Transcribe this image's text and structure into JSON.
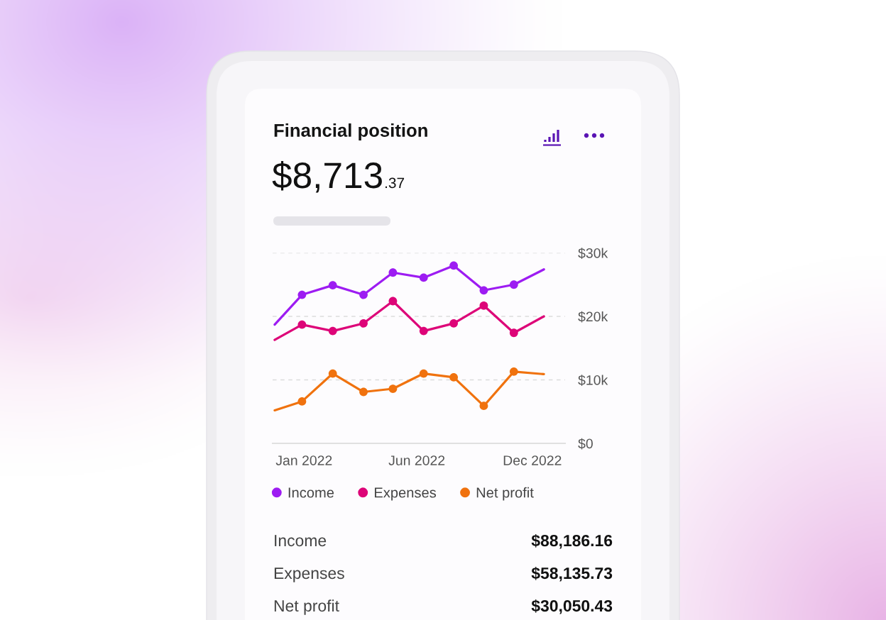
{
  "chart_data": {
    "type": "line",
    "title": "Financial position",
    "subtitle": "$8,713.37",
    "x": [
      "2021-11-19",
      "2021-12-29",
      "2022-02-12",
      "2022-03-29",
      "2022-05-11",
      "2022-06-25",
      "2022-08-08",
      "2022-09-21",
      "2022-11-04",
      "2022-12-18"
    ],
    "series": [
      {
        "name": "Income",
        "color": "#9d1cf2",
        "values": [
          18700,
          23400,
          24900,
          23400,
          26900,
          26100,
          28000,
          24100,
          25000,
          27400
        ]
      },
      {
        "name": "Expenses",
        "color": "#dd0478",
        "values": [
          16300,
          18700,
          17700,
          18900,
          22400,
          17700,
          18900,
          21700,
          17400,
          20000
        ]
      },
      {
        "name": "Net profit",
        "color": "#f0720e",
        "values": [
          5200,
          6600,
          11000,
          8100,
          8600,
          11000,
          10400,
          5900,
          11300,
          10900
        ]
      }
    ],
    "xlim": [
      "2021-11-16",
      "2023-01-18"
    ],
    "xticks": [
      {
        "value": "2022-01-01",
        "label": "Jan 2022"
      },
      {
        "value": "2022-06-15",
        "label": "Jun 2022"
      },
      {
        "value": "2022-12-01",
        "label": "Dec 2022"
      }
    ],
    "ylim": [
      0,
      30000
    ],
    "yticks": [
      {
        "value": 0,
        "label": "$0"
      },
      {
        "value": 10000,
        "label": "$10k"
      },
      {
        "value": 20000,
        "label": "$20k"
      },
      {
        "value": 30000,
        "label": "$30k"
      }
    ],
    "grid": "y",
    "legend": "bottom",
    "marker": "circle",
    "line_style": "solid",
    "annotations": [
      "Income",
      "$88,186.16",
      "Expenses",
      "$58,135.73",
      "Net profit",
      "$30,050.43"
    ]
  }
}
